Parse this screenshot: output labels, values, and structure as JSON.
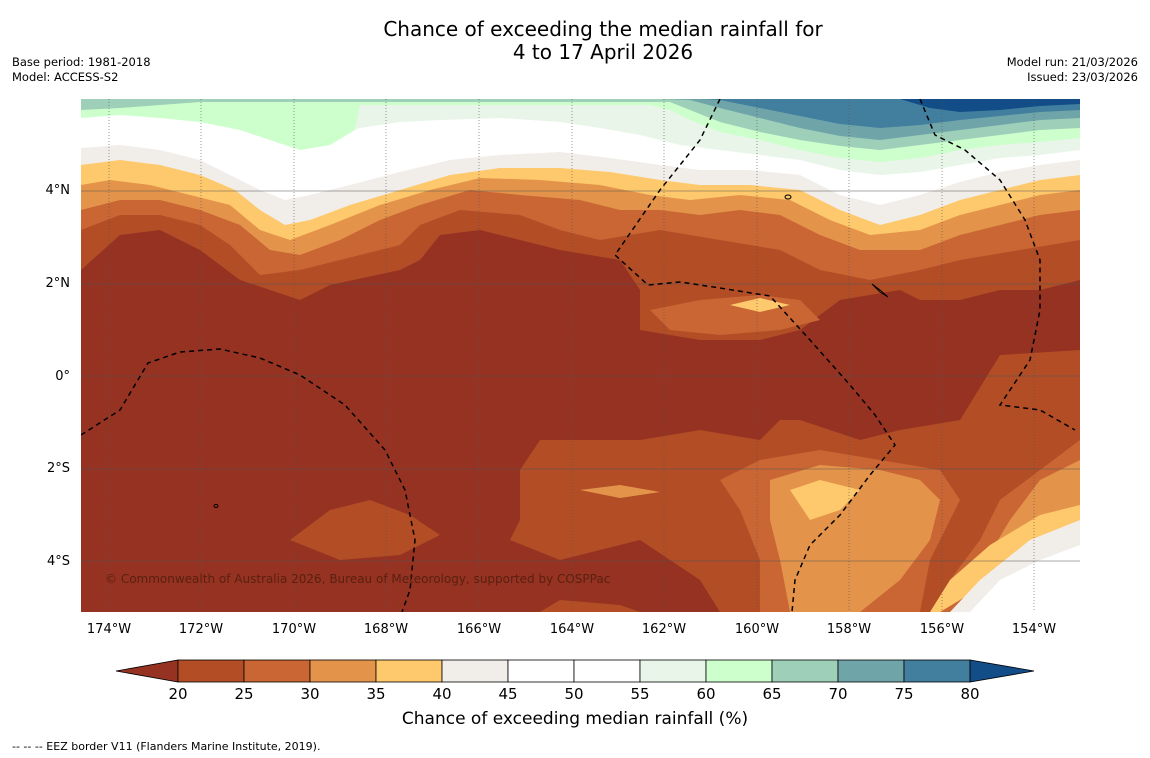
{
  "title_line1": "Chance of exceeding the median rainfall for",
  "title_line2": "4 to 17 April 2026",
  "meta": {
    "base_period": "Base period: 1981-2018",
    "model": "Model: ACCESS-S2",
    "model_run": "Model run: 21/03/2026",
    "issued": "Issued: 23/03/2026"
  },
  "copyright": "© Commonwealth of Australia 2026, Bureau of Meteorology, supported by COSPPac",
  "lat_labels": [
    "4°N",
    "2°N",
    "0°",
    "2°S",
    "4°S"
  ],
  "lon_labels": [
    "174°W",
    "172°W",
    "170°W",
    "168°W",
    "166°W",
    "164°W",
    "162°W",
    "160°W",
    "158°W",
    "156°W",
    "154°W"
  ],
  "colorbar": {
    "title": "Chance of exceeding median rainfall (%)",
    "ticks": [
      "20",
      "25",
      "30",
      "35",
      "40",
      "45",
      "50",
      "55",
      "60",
      "65",
      "70",
      "75",
      "80"
    ],
    "colors": [
      "#963222",
      "#b24d26",
      "#c96634",
      "#e3944a",
      "#fec96c",
      "#f1ede9",
      "#ffffff",
      "#ffffff",
      "#e9f5e9",
      "#ccffcc",
      "#9ecfb8",
      "#6fa4a8",
      "#427f9e",
      "#124d87"
    ]
  },
  "footnote": "--  --  -- EEZ border V11 (Flanders Marine Institute, 2019)."
}
